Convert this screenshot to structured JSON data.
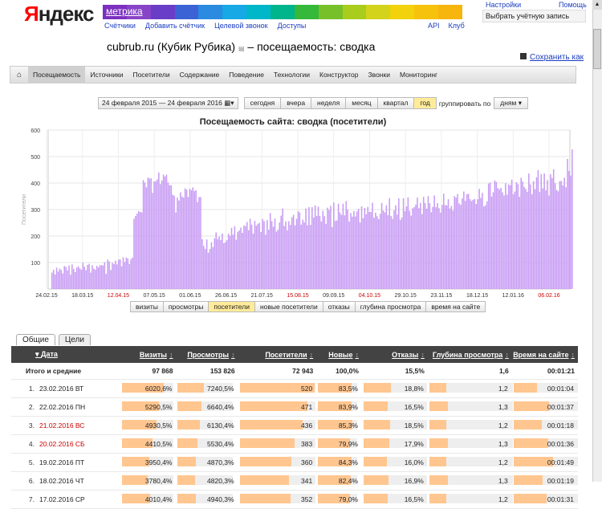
{
  "header": {
    "logo_y": "Я",
    "logo_rest": "ндекс",
    "product": "метрика",
    "links": [
      "Счётчики",
      "Добавить счётчик",
      "Целевой звонок",
      "Доступы"
    ],
    "right_links": [
      "API",
      "Клуб"
    ],
    "settings": "Настройки",
    "help": "Помощь",
    "account_select": "Выбрать учётную запись",
    "rainbow": [
      "#7b30c0",
      "#8844c8",
      "#6a3dc7",
      "#3b63d6",
      "#2a8be0",
      "#17a8e6",
      "#00b6c9",
      "#00b48b",
      "#36b83a",
      "#78c02a",
      "#a9cd1c",
      "#d2d31a",
      "#f2d20d",
      "#f7c20b",
      "#f7b50d"
    ]
  },
  "title": {
    "site": "cubrub.ru (Кубик Рубика)",
    "suffix": "– посещаемость: сводка",
    "save_as": "Сохранить как"
  },
  "nav": {
    "tabs": [
      "Посещаемость",
      "Источники",
      "Посетители",
      "Содержание",
      "Поведение",
      "Технологии",
      "Конструктор",
      "Звонки",
      "Мониторинг"
    ],
    "active": 0
  },
  "period": {
    "date_range": "24 февраля 2015 — 24 февраля 2016",
    "buttons": [
      "сегодня",
      "вчера",
      "неделя",
      "месяц",
      "квартал",
      "год"
    ],
    "active": "год",
    "group_label": "группировать по",
    "group_value": "дням"
  },
  "chart_data": {
    "type": "bar",
    "title": "Посещаемость сайта: сводка (посетители)",
    "ylabel": "Посетители",
    "ylim": [
      0,
      600
    ],
    "yticks": [
      100,
      200,
      300,
      400,
      500,
      600
    ],
    "x_tick_labels": [
      "24.02.15",
      "18.03.15",
      "12.04.15",
      "07.05.15",
      "01.06.15",
      "26.06.15",
      "21.07.15",
      "15.08.15",
      "09.09.15",
      "04.10.15",
      "29.10.15",
      "23.11.15",
      "18.12.15",
      "12.01.16",
      "06.02.16"
    ],
    "red_ticks": [
      "12.04.15",
      "15.08.15",
      "04.10.15",
      "06.02.16"
    ],
    "color": "#c89cf4",
    "values": [
      62,
      73,
      55,
      81,
      66,
      77,
      72,
      59,
      87,
      83,
      70,
      89,
      54,
      93,
      76,
      64,
      81,
      86,
      78,
      73,
      99,
      84,
      71,
      91,
      95,
      62,
      90,
      77,
      73,
      88,
      82,
      90,
      90,
      89,
      101,
      57,
      111,
      104,
      72,
      99,
      94,
      107,
      93,
      111,
      112,
      86,
      120,
      102,
      119,
      115,
      94,
      112,
      119,
      265,
      276,
      285,
      294,
      291,
      289,
      411,
      402,
      384,
      421,
      417,
      418,
      363,
      406,
      407,
      414,
      440,
      396,
      410,
      432,
      425,
      432,
      402,
      391,
      392,
      356,
      352,
      289,
      345,
      334,
      365,
      349,
      345,
      380,
      375,
      347,
      378,
      373,
      384,
      370,
      373,
      328,
      347,
      347,
      188,
      163,
      151,
      187,
      137,
      151,
      177,
      158,
      191,
      214,
      188,
      198,
      185,
      209,
      173,
      177,
      185,
      209,
      201,
      231,
      205,
      237,
      186,
      216,
      221,
      232,
      212,
      240,
      237,
      253,
      222,
      265,
      243,
      209,
      257,
      239,
      246,
      250,
      215,
      264,
      256,
      205,
      260,
      224,
      287,
      256,
      235,
      266,
      217,
      224,
      251,
      277,
      304,
      238,
      255,
      222,
      256,
      242,
      271,
      280,
      240,
      265,
      294,
      289,
      243,
      262,
      251,
      304,
      241,
      309,
      242,
      309,
      270,
      316,
      276,
      311,
      276,
      255,
      295,
      275,
      246,
      307,
      298,
      314,
      234,
      327,
      257,
      259,
      322,
      289,
      280,
      322,
      278,
      332,
      300,
      255,
      287,
      273,
      294,
      274,
      293,
      303,
      251,
      312,
      267,
      306,
      282,
      310,
      291,
      291,
      326,
      269,
      288,
      275,
      264,
      284,
      325,
      296,
      289,
      316,
      279,
      343,
      276,
      265,
      297,
      316,
      281,
      342,
      261,
      270,
      343,
      294,
      312,
      346,
      295,
      277,
      305,
      309,
      319,
      345,
      305,
      325,
      283,
      348,
      325,
      303,
      351,
      324,
      290,
      310,
      353,
      309,
      324,
      305,
      289,
      318,
      360,
      317,
      316,
      339,
      304,
      314,
      296,
      351,
      345,
      359,
      323,
      318,
      342,
      368,
      333,
      358,
      359,
      339,
      332,
      337,
      340,
      321,
      339,
      378,
      344,
      363,
      312,
      316,
      331,
      398,
      402,
      349,
      365,
      410,
      404,
      381,
      376,
      382,
      365,
      353,
      400,
      356,
      395,
      392,
      413,
      358,
      368,
      403,
      396,
      348,
      420,
      406,
      386,
      378,
      367,
      436,
      395,
      358,
      407,
      377,
      422,
      449,
      366,
      434,
      380,
      436,
      373,
      411,
      353,
      433,
      419,
      452,
      399,
      374,
      369,
      407,
      408,
      391,
      420,
      384,
      491,
      446,
      428,
      527
    ]
  },
  "metric_tabs": [
    "визиты",
    "просмотры",
    "посетители",
    "новые посетители",
    "отказы",
    "глубина просмотра",
    "время на сайте"
  ],
  "metric_active": 2,
  "table_tabs": [
    "Общие",
    "Цели"
  ],
  "table": {
    "columns": [
      "Дата",
      "Визиты",
      "Просмотры",
      "Посетители",
      "Новые",
      "Отказы",
      "Глубина просмотра",
      "Время на сайте"
    ],
    "totals": {
      "label": "Итого и средние",
      "visits": "97 868",
      "views": "153 826",
      "visitors": "72 943",
      "new": "100,0%",
      "bounce": "15,5%",
      "depth": "1,6",
      "time": "00:01:21"
    },
    "rows": [
      {
        "n": "1.",
        "date": "23.02.2016 ВТ",
        "red": false,
        "visits": "602",
        "vp": "0,6%",
        "views": "724",
        "wp": "0,5%",
        "visitors": "520",
        "new": "83,5%",
        "bounce": "18,8%",
        "depth": "1,2",
        "time": "00:01:04",
        "fv": 0.82,
        "fw": 0.47,
        "fu": 0.99,
        "fn": 0.85,
        "fb": 0.43,
        "fd": 0.2,
        "ft": 0.36
      },
      {
        "n": "2.",
        "date": "22.02.2016 ПН",
        "red": false,
        "visits": "529",
        "vp": "0,5%",
        "views": "664",
        "wp": "0,4%",
        "visitors": "471",
        "new": "83,9%",
        "bounce": "16,5%",
        "depth": "1,3",
        "time": "00:01:37",
        "fv": 0.72,
        "fw": 0.43,
        "fu": 0.9,
        "fn": 0.86,
        "fb": 0.38,
        "fd": 0.22,
        "ft": 0.55
      },
      {
        "n": "3.",
        "date": "21.02.2016 ВС",
        "red": true,
        "visits": "493",
        "vp": "0,5%",
        "views": "613",
        "wp": "0,4%",
        "visitors": "436",
        "new": "85,3%",
        "bounce": "18,5%",
        "depth": "1,2",
        "time": "00:01:18",
        "fv": 0.67,
        "fw": 0.4,
        "fu": 0.83,
        "fn": 0.87,
        "fb": 0.42,
        "fd": 0.2,
        "ft": 0.44
      },
      {
        "n": "4.",
        "date": "20.02.2016 СБ",
        "red": true,
        "visits": "441",
        "vp": "0,5%",
        "views": "553",
        "wp": "0,4%",
        "visitors": "383",
        "new": "79,9%",
        "bounce": "17,9%",
        "depth": "1,3",
        "time": "00:01:36",
        "fv": 0.6,
        "fw": 0.36,
        "fu": 0.73,
        "fn": 0.82,
        "fb": 0.41,
        "fd": 0.22,
        "ft": 0.54
      },
      {
        "n": "5.",
        "date": "19.02.2016 ПТ",
        "red": false,
        "visits": "395",
        "vp": "0,4%",
        "views": "487",
        "wp": "0,3%",
        "visitors": "360",
        "new": "84,3%",
        "bounce": "16,0%",
        "depth": "1,2",
        "time": "00:01:49",
        "fv": 0.54,
        "fw": 0.32,
        "fu": 0.69,
        "fn": 0.86,
        "fb": 0.37,
        "fd": 0.2,
        "ft": 0.62
      },
      {
        "n": "6.",
        "date": "18.02.2016 ЧТ",
        "red": false,
        "visits": "378",
        "vp": "0,4%",
        "views": "482",
        "wp": "0,3%",
        "visitors": "341",
        "new": "82,4%",
        "bounce": "16,9%",
        "depth": "1,3",
        "time": "00:01:19",
        "fv": 0.51,
        "fw": 0.31,
        "fu": 0.65,
        "fn": 0.84,
        "fb": 0.39,
        "fd": 0.22,
        "ft": 0.45
      },
      {
        "n": "7.",
        "date": "17.02.2016 СР",
        "red": false,
        "visits": "401",
        "vp": "0,4%",
        "views": "494",
        "wp": "0,3%",
        "visitors": "352",
        "new": "79,0%",
        "bounce": "16,5%",
        "depth": "1,2",
        "time": "00:01:31",
        "fv": 0.55,
        "fw": 0.32,
        "fu": 0.67,
        "fn": 0.81,
        "fb": 0.38,
        "fd": 0.2,
        "ft": 0.51
      }
    ]
  }
}
